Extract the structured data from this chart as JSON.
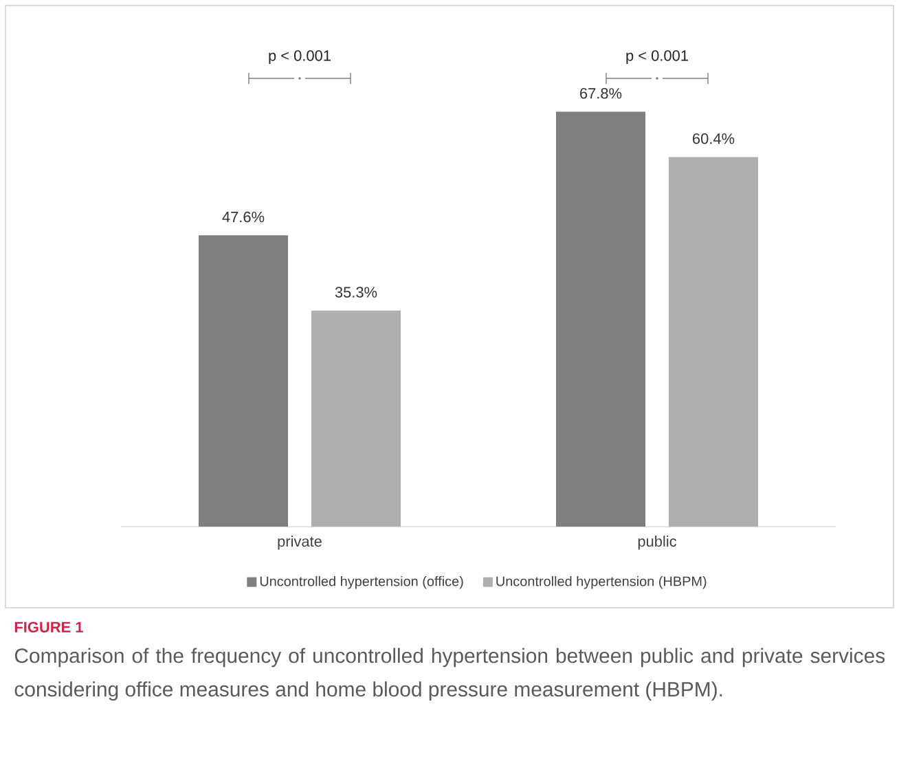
{
  "chart_data": {
    "type": "bar",
    "categories": [
      "private",
      "public"
    ],
    "series": [
      {
        "name": "Uncontrolled hypertension (office)",
        "color": "#7f7f7f",
        "values": [
          47.6,
          67.8
        ],
        "value_labels": [
          "47.6%",
          "67.8%"
        ]
      },
      {
        "name": "Uncontrolled hypertension (HBPM)",
        "color": "#afafaf",
        "values": [
          35.3,
          60.4
        ],
        "value_labels": [
          "35.3%",
          "60.4%"
        ]
      }
    ],
    "legend": "bottom",
    "annotations": [
      "p < 0.001",
      "p < 0.001",
      "FIGURE 1",
      "Comparison of the frequency of uncontrolled hypertension between public and private services considering office measures and home blood pressure measurement (HBPM)."
    ]
  }
}
